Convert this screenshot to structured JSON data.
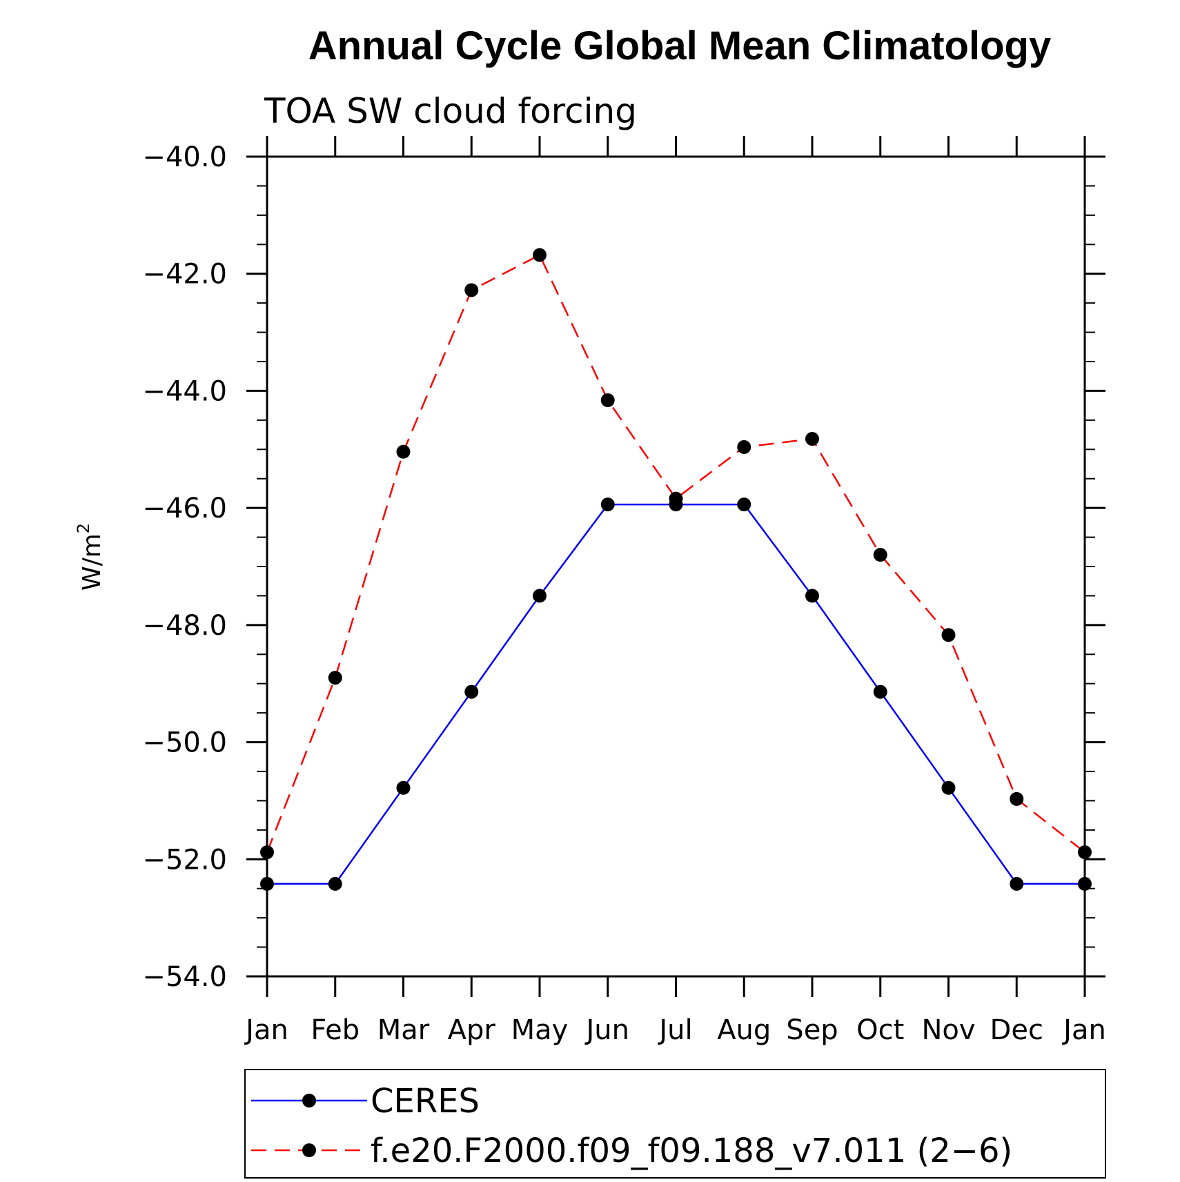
{
  "chart_data": {
    "type": "line",
    "title": "Annual Cycle Global Mean Climatology",
    "subtitle": "TOA SW cloud forcing",
    "ylabel_base": "W/m",
    "ylabel_sup": "2",
    "xlabel": "",
    "categories": [
      "Jan",
      "Feb",
      "Mar",
      "Apr",
      "May",
      "Jun",
      "Jul",
      "Aug",
      "Sep",
      "Oct",
      "Nov",
      "Dec",
      "Jan"
    ],
    "ylim": [
      -54.0,
      -40.0
    ],
    "yticks": [
      -54.0,
      -52.0,
      -50.0,
      -48.0,
      -46.0,
      -44.0,
      -42.0,
      -40.0
    ],
    "ytick_labels": [
      "−54.0",
      "−52.0",
      "−50.0",
      "−48.0",
      "−46.0",
      "−44.0",
      "−42.0",
      "−40.0"
    ],
    "series": [
      {
        "name": "CERES",
        "color": "#0000ff",
        "dash": "solid",
        "values": [
          -52.42,
          -52.42,
          -50.78,
          -49.14,
          -47.5,
          -45.94,
          -45.94,
          -45.94,
          -47.5,
          -49.14,
          -50.78,
          -52.42,
          -52.42
        ]
      },
      {
        "name": "f.e20.F2000.f09_f09.188_v7.011 (2−6)",
        "color": "#ff0000",
        "dash": "dashed",
        "values": [
          -51.88,
          -48.9,
          -45.04,
          -42.28,
          -41.68,
          -44.16,
          -45.84,
          -44.96,
          -44.82,
          -46.8,
          -48.17,
          -50.97,
          -51.88
        ]
      }
    ],
    "marker_color": "#000000",
    "legend_position": "bottom"
  }
}
